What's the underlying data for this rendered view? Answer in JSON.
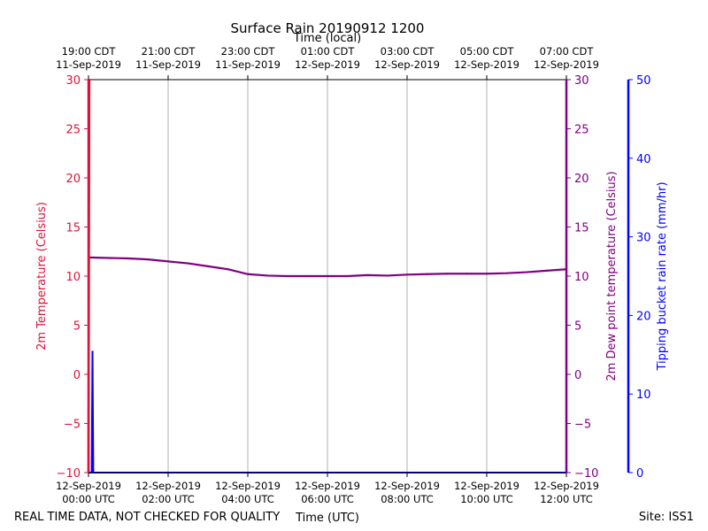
{
  "chart_data": {
    "type": "line",
    "title": "Surface Rain 20190912 1200",
    "top_axis_label": "Time (local)",
    "xlabel": "Time (UTC)",
    "ylabel_left": "2m Temperature (Celsius)",
    "ylabel_right": "2m Dew point temperature (Celsius)",
    "ylabel_rain": "Tipping bucket rain rate (mm/hr)",
    "footer_left": "REAL TIME DATA, NOT CHECKED FOR QUALITY",
    "footer_right": "Site: ISS1",
    "xlim_hours": [
      0,
      12
    ],
    "ylim_temp": [
      -10,
      30
    ],
    "ylim_rain": [
      0,
      50
    ],
    "temp_ticks": [
      "30",
      "25",
      "20",
      "15",
      "10",
      "5",
      "0",
      "−5",
      "−10"
    ],
    "dew_ticks": [
      "30",
      "25",
      "20",
      "15",
      "10",
      "5",
      "0",
      "−5",
      "−10"
    ],
    "rain_ticks": [
      "50",
      "40",
      "30",
      "20",
      "10",
      "0"
    ],
    "bottom_ticks": [
      {
        "line1": "12-Sep-2019",
        "line2": "00:00 UTC"
      },
      {
        "line1": "12-Sep-2019",
        "line2": "02:00 UTC"
      },
      {
        "line1": "12-Sep-2019",
        "line2": "04:00 UTC"
      },
      {
        "line1": "12-Sep-2019",
        "line2": "06:00 UTC"
      },
      {
        "line1": "12-Sep-2019",
        "line2": "08:00 UTC"
      },
      {
        "line1": "12-Sep-2019",
        "line2": "10:00 UTC"
      },
      {
        "line1": "12-Sep-2019",
        "line2": "12:00 UTC"
      }
    ],
    "top_ticks": [
      {
        "line1": "19:00 CDT",
        "line2": "11-Sep-2019"
      },
      {
        "line1": "21:00 CDT",
        "line2": "11-Sep-2019"
      },
      {
        "line1": "23:00 CDT",
        "line2": "11-Sep-2019"
      },
      {
        "line1": "01:00 CDT",
        "line2": "12-Sep-2019"
      },
      {
        "line1": "03:00 CDT",
        "line2": "12-Sep-2019"
      },
      {
        "line1": "05:00 CDT",
        "line2": "12-Sep-2019"
      },
      {
        "line1": "07:00 CDT",
        "line2": "12-Sep-2019"
      }
    ],
    "series": [
      {
        "name": "2m Dew point temperature",
        "color": "#800080",
        "x_hours": [
          0,
          0.5,
          1,
          1.5,
          2,
          2.5,
          3,
          3.5,
          4,
          4.5,
          5,
          5.5,
          6,
          6.5,
          7,
          7.5,
          8,
          8.5,
          9,
          9.5,
          10,
          10.5,
          11,
          11.5,
          12
        ],
        "values": [
          11.9,
          11.85,
          11.8,
          11.7,
          11.5,
          11.3,
          11.0,
          10.7,
          10.2,
          10.05,
          10.0,
          10.0,
          10.0,
          10.0,
          10.1,
          10.05,
          10.15,
          10.2,
          10.25,
          10.25,
          10.25,
          10.3,
          10.4,
          10.55,
          10.7
        ]
      },
      {
        "name": "2m Temperature",
        "color": "#dc143c",
        "x_hours": [
          0,
          0.02
        ],
        "values": [
          -10,
          30
        ]
      },
      {
        "name": "Tipping bucket rain rate",
        "color": "#0000ff",
        "x_hours": [
          0,
          0.08,
          0.1,
          0.12,
          0.14,
          12
        ],
        "values": [
          0,
          0,
          15.5,
          0,
          0,
          0
        ]
      }
    ],
    "colors": {
      "temp": "#dc143c",
      "dew": "#800080",
      "rain": "#0000ff",
      "grid": "#b0b0b0"
    }
  }
}
